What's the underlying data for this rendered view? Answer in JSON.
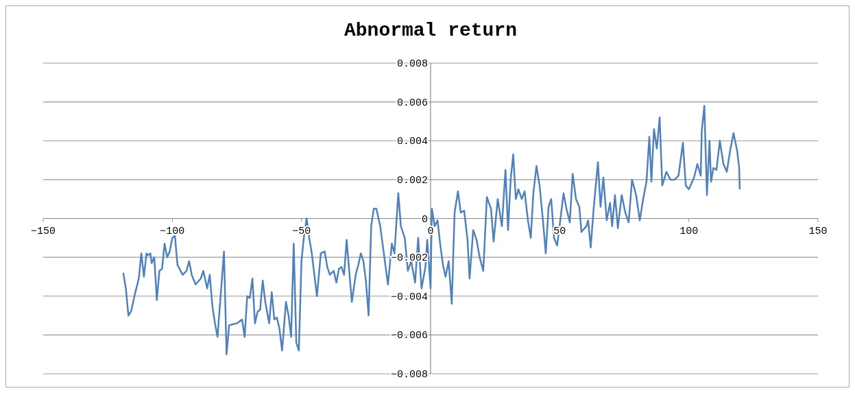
{
  "chart_data": {
    "type": "line",
    "title": "Abnormal return",
    "grid": "y",
    "line_style": "solid",
    "marker": "none",
    "xlim": [
      -150,
      150
    ],
    "xticks": [
      -150,
      -100,
      -50,
      0,
      50,
      100,
      150
    ],
    "ylim": [
      -0.008,
      0.008
    ],
    "yticks": [
      -0.008,
      -0.006,
      -0.004,
      -0.002,
      0,
      0.002,
      0.004,
      0.006,
      0.008
    ],
    "series": [
      {
        "color": "#4f81bd",
        "x": [
          -119,
          -118,
          -117,
          -116,
          -114.5,
          -113,
          -112,
          -111,
          -110,
          -109.5,
          -108.5,
          -108,
          -107,
          -106,
          -105,
          -104,
          -103,
          -102,
          -101,
          -100,
          -99,
          -98,
          -96,
          -94.5,
          -93.5,
          -92.5,
          -91,
          -89,
          -88,
          -86.5,
          -85.5,
          -84.5,
          -83.5,
          -82.5,
          -80,
          -79,
          -78,
          -75,
          -73,
          -72,
          -71,
          -70,
          -69,
          -68,
          -67,
          -66,
          -65,
          -64,
          -62.5,
          -61.5,
          -60.5,
          -59.5,
          -58.5,
          -57.5,
          -56,
          -55,
          -54,
          -53,
          -52,
          -51,
          -50,
          -49,
          -48,
          -47,
          -46,
          -45,
          -44,
          -42.5,
          -41,
          -40,
          -39,
          -37.5,
          -36.5,
          -35.5,
          -34.5,
          -33.5,
          -32.5,
          -31.5,
          -30.5,
          -29,
          -28,
          -27,
          -26,
          -25,
          -24,
          -23,
          -22,
          -21,
          -19.5,
          -16.5,
          -15,
          -14,
          -12.5,
          -11.5,
          -10,
          -8.8,
          -7.5,
          -6,
          -4.8,
          -3.5,
          -2,
          -1.3,
          0,
          0.5,
          1.6,
          2.7,
          3.7,
          4.8,
          5.8,
          7,
          8.2,
          9.3,
          10.6,
          11.7,
          13,
          14.3,
          15.1,
          16.5,
          17.8,
          19,
          20.4,
          21.8,
          23.4,
          24.4,
          26,
          27.6,
          29,
          30,
          31,
          32,
          33,
          34,
          35.3,
          36.4,
          37.7,
          38.8,
          39.8,
          41,
          42.2,
          43.5,
          44.6,
          45.7,
          46.7,
          47.8,
          49,
          50.4,
          51.5,
          52.6,
          53.9,
          55,
          56.3,
          57.6,
          58.4,
          60.3,
          61,
          62,
          63.2,
          64.8,
          65.8,
          66.9,
          68.2,
          69.5,
          70.3,
          71.4,
          72.5,
          74,
          75.4,
          76.7,
          78,
          79.6,
          81,
          82.3,
          83.6,
          84.7,
          85.5,
          86.5,
          87.6,
          88.7,
          89.7,
          91.3,
          92.9,
          94.5,
          96,
          97.7,
          98.8,
          100,
          102,
          103.3,
          104.6,
          105,
          106,
          107,
          108,
          108.6,
          109.5,
          110.7,
          112,
          113.4,
          114.7,
          116,
          117.3,
          118.7,
          119.5,
          119.7
        ],
        "values": [
          -0.0028,
          -0.0036,
          -0.005,
          -0.0048,
          -0.0039,
          -0.0031,
          -0.0018,
          -0.003,
          -0.0018,
          -0.0019,
          -0.0018,
          -0.0023,
          -0.002,
          -0.0042,
          -0.0027,
          -0.0026,
          -0.0013,
          -0.002,
          -0.0017,
          -0.001,
          -0.0009,
          -0.0024,
          -0.0029,
          -0.0027,
          -0.0022,
          -0.0029,
          -0.0034,
          -0.0031,
          -0.0027,
          -0.0036,
          -0.0029,
          -0.0045,
          -0.0054,
          -0.0061,
          -0.0017,
          -0.007,
          -0.0055,
          -0.0054,
          -0.0052,
          -0.0061,
          -0.004,
          -0.0041,
          -0.0031,
          -0.0054,
          -0.0048,
          -0.0047,
          -0.0032,
          -0.0043,
          -0.0054,
          -0.0038,
          -0.0052,
          -0.0051,
          -0.0057,
          -0.0068,
          -0.0043,
          -0.005,
          -0.0061,
          -0.0013,
          -0.0064,
          -0.0068,
          -0.0022,
          -0.0009,
          0,
          -0.001,
          -0.0018,
          -0.0029,
          -0.004,
          -0.0018,
          -0.0017,
          -0.0025,
          -0.0029,
          -0.0027,
          -0.0033,
          -0.0026,
          -0.0025,
          -0.0029,
          -0.0011,
          -0.0027,
          -0.0043,
          -0.0029,
          -0.0024,
          -0.0018,
          -0.0022,
          -0.0033,
          -0.005,
          -0.0004,
          0.0005,
          0.0005,
          -0.0004,
          -0.0034,
          -0.0013,
          -0.0018,
          0.0013,
          -0.0004,
          -0.001,
          -0.0027,
          -0.0022,
          -0.0033,
          -0.001,
          -0.0036,
          -0.0025,
          -0.0011,
          -0.0036,
          0.0005,
          -0.0004,
          -0.0001,
          -0.0013,
          -0.0024,
          -0.003,
          -0.0022,
          -0.0044,
          0.0003,
          0.0014,
          0.0003,
          0.0004,
          -0.0011,
          -0.0031,
          -0.0006,
          -0.0011,
          -0.002,
          -0.0027,
          0.0011,
          0.0005,
          -0.0012,
          0.001,
          -0.0004,
          0.0025,
          -0.0006,
          0.002,
          0.0033,
          0.001,
          0.0015,
          0.001,
          0.0014,
          -0.0001,
          -0.001,
          0.0013,
          0.0027,
          0.0017,
          -0.0001,
          -0.0018,
          0.0006,
          0.001,
          -0.001,
          -0.0014,
          0.0001,
          0.0013,
          0.0005,
          -0.0002,
          0.0023,
          0.001,
          0.0006,
          -0.0007,
          -0.0004,
          -0.0001,
          -0.0015,
          0.0006,
          0.0029,
          0.0006,
          0.0021,
          -0.0001,
          0.0008,
          -0.0004,
          0.0012,
          -0.0005,
          0.0012,
          0.0003,
          -0.0002,
          0.002,
          0.0012,
          -0.0001,
          0.001,
          0.0019,
          0.0042,
          0.0019,
          0.0046,
          0.0036,
          0.0052,
          0.0017,
          0.0024,
          0.002,
          0.002,
          0.0022,
          0.0039,
          0.0017,
          0.0015,
          0.0021,
          0.0028,
          0.0022,
          0.0045,
          0.0058,
          0.0012,
          0.004,
          0.0019,
          0.0026,
          0.0025,
          0.004,
          0.0028,
          0.0024,
          0.0035,
          0.0044,
          0.0035,
          0.0026,
          0.0015
        ]
      }
    ]
  }
}
